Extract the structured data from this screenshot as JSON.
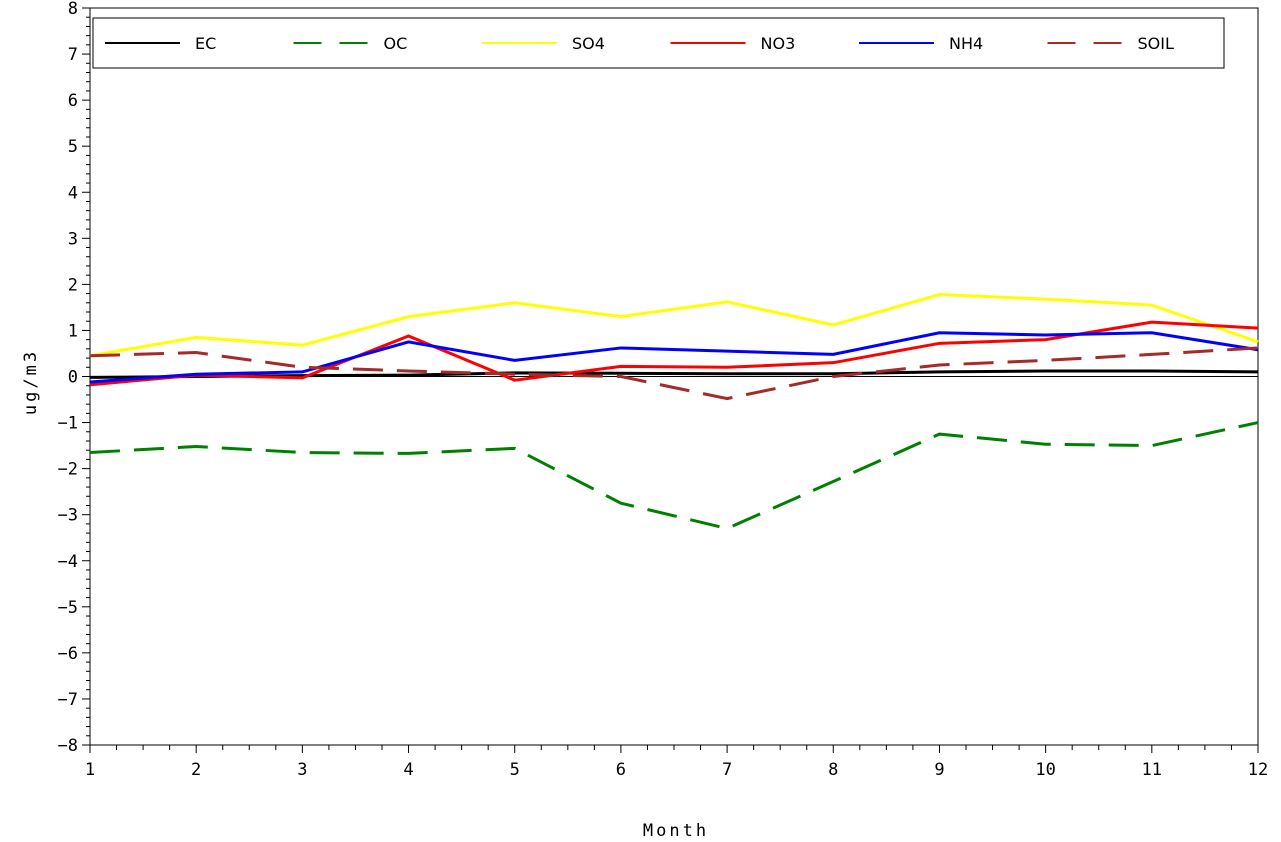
{
  "chart_data": {
    "type": "line",
    "title": "",
    "xlabel": "Month",
    "ylabel": "ug/m3",
    "x": [
      1,
      2,
      3,
      4,
      5,
      6,
      7,
      8,
      9,
      10,
      11,
      12
    ],
    "xlim": [
      1,
      12
    ],
    "ylim": [
      -8,
      8
    ],
    "yticks": [
      -8,
      -7,
      -6,
      -5,
      -4,
      -3,
      -2,
      -1,
      0,
      1,
      2,
      3,
      4,
      5,
      6,
      7,
      8
    ],
    "xticks": [
      1,
      2,
      3,
      4,
      5,
      6,
      7,
      8,
      9,
      10,
      11,
      12
    ],
    "zero_line": true,
    "grid": false,
    "legend_position": "top",
    "series": [
      {
        "name": "EC",
        "color": "#000000",
        "dash": "solid",
        "values": [
          -0.02,
          0.0,
          0.02,
          0.03,
          0.08,
          0.07,
          0.06,
          0.06,
          0.1,
          0.12,
          0.12,
          0.1
        ]
      },
      {
        "name": "OC",
        "color": "#008000",
        "dash": "dashed",
        "values": [
          -1.65,
          -1.52,
          -1.65,
          -1.67,
          -1.56,
          -2.75,
          -3.3,
          -2.28,
          -1.25,
          -1.47,
          -1.5,
          -1.0
        ]
      },
      {
        "name": "SO4",
        "color": "#ffff00",
        "dash": "solid",
        "values": [
          0.45,
          0.85,
          0.68,
          1.3,
          1.6,
          1.3,
          1.62,
          1.12,
          1.78,
          1.68,
          1.55,
          0.75
        ]
      },
      {
        "name": "NO3",
        "color": "#ff0000",
        "dash": "solid",
        "values": [
          -0.18,
          0.03,
          -0.03,
          0.88,
          -0.08,
          0.22,
          0.2,
          0.3,
          0.72,
          0.8,
          1.18,
          1.05
        ]
      },
      {
        "name": "NH4",
        "color": "#0000ff",
        "dash": "solid",
        "values": [
          -0.12,
          0.05,
          0.1,
          0.75,
          0.35,
          0.62,
          0.55,
          0.48,
          0.95,
          0.9,
          0.95,
          0.58
        ]
      },
      {
        "name": "SOIL",
        "color": "#a52a2a",
        "dash": "dashed",
        "values": [
          0.45,
          0.52,
          0.2,
          0.12,
          0.05,
          0.0,
          -0.48,
          0.0,
          0.25,
          0.35,
          0.48,
          0.62
        ]
      }
    ]
  }
}
